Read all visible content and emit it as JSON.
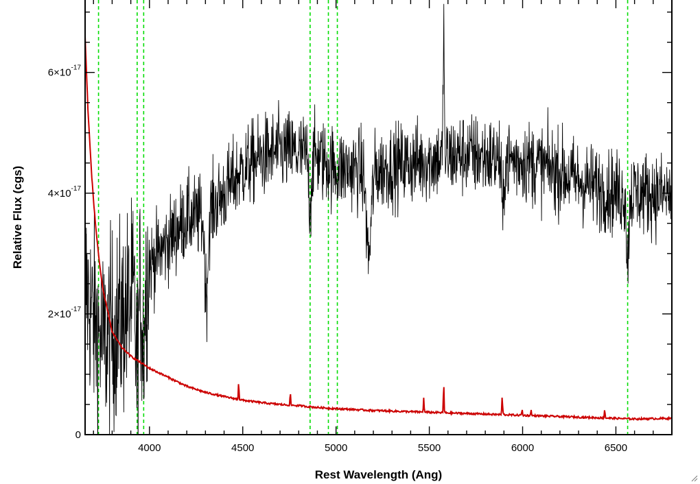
{
  "chart_data": {
    "type": "line",
    "xlabel": "Rest Wavelength (Ang)",
    "ylabel": "Relative Flux (cgs)",
    "xlim": [
      3655,
      6800
    ],
    "ylim": [
      0,
      7.2e-17
    ],
    "x_ticks": [
      {
        "value": 4000,
        "label": "4000"
      },
      {
        "value": 4500,
        "label": "4500"
      },
      {
        "value": 5000,
        "label": "5000"
      },
      {
        "value": 5500,
        "label": "5500"
      },
      {
        "value": 6000,
        "label": "6000"
      },
      {
        "value": 6500,
        "label": "6500"
      }
    ],
    "x_minor_step": 100,
    "y_ticks": [
      {
        "value": 0,
        "mantissa": "0",
        "exponent": ""
      },
      {
        "value": 2e-17,
        "mantissa": "2×10",
        "exponent": "-17"
      },
      {
        "value": 4e-17,
        "mantissa": "4×10",
        "exponent": "-17"
      },
      {
        "value": 6e-17,
        "mantissa": "6×10",
        "exponent": "-17"
      }
    ],
    "y_minor_step": 5e-18,
    "grid": false,
    "series": [
      {
        "color": "#000000",
        "style": "noisy-spectrum",
        "noise_sigma": 3.5e-18,
        "continuum": [
          [
            3655,
            2.5e-17
          ],
          [
            3700,
            1.9e-17
          ],
          [
            3750,
            1.5e-17
          ],
          [
            3800,
            1.7e-17
          ],
          [
            3850,
            1.9e-17
          ],
          [
            3900,
            2.2e-17
          ],
          [
            3950,
            2.4e-17
          ],
          [
            4000,
            2.8e-17
          ],
          [
            4100,
            3.2e-17
          ],
          [
            4200,
            3.6e-17
          ],
          [
            4300,
            3.6e-17
          ],
          [
            4400,
            4e-17
          ],
          [
            4500,
            4.4e-17
          ],
          [
            4600,
            4.6e-17
          ],
          [
            4700,
            4.7e-17
          ],
          [
            4800,
            4.65e-17
          ],
          [
            4900,
            4.6e-17
          ],
          [
            5000,
            4.4e-17
          ],
          [
            5100,
            4.4e-17
          ],
          [
            5200,
            4.35e-17
          ],
          [
            5300,
            4.45e-17
          ],
          [
            5400,
            4.5e-17
          ],
          [
            5500,
            4.55e-17
          ],
          [
            5600,
            4.6e-17
          ],
          [
            5700,
            4.65e-17
          ],
          [
            5800,
            4.6e-17
          ],
          [
            5900,
            4.55e-17
          ],
          [
            6000,
            4.55e-17
          ],
          [
            6100,
            4.45e-17
          ],
          [
            6200,
            4.35e-17
          ],
          [
            6300,
            4.2e-17
          ],
          [
            6400,
            4.1e-17
          ],
          [
            6500,
            4e-17
          ],
          [
            6600,
            4e-17
          ],
          [
            6700,
            4e-17
          ],
          [
            6800,
            3.95e-17
          ]
        ],
        "features": [
          {
            "center": 3933,
            "width": 10,
            "depth": -1.2e-17
          },
          {
            "center": 3968,
            "width": 10,
            "depth": -1e-17
          },
          {
            "center": 4305,
            "width": 12,
            "depth": -1.3e-17
          },
          {
            "center": 4861,
            "width": 10,
            "depth": -8e-18
          },
          {
            "center": 5175,
            "width": 18,
            "depth": -1.4e-17
          },
          {
            "center": 5577,
            "width": 4,
            "depth": 2.3e-17
          },
          {
            "center": 5893,
            "width": 8,
            "depth": -1e-17
          },
          {
            "center": 6563,
            "width": 8,
            "depth": -1.2e-17
          }
        ]
      },
      {
        "color": "#cc0000",
        "style": "smooth",
        "points": [
          [
            3655,
            6.6e-17
          ],
          [
            3670,
            5.4e-17
          ],
          [
            3690,
            4.3e-17
          ],
          [
            3710,
            3.5e-17
          ],
          [
            3730,
            2.9e-17
          ],
          [
            3750,
            2.4e-17
          ],
          [
            3780,
            2e-17
          ],
          [
            3800,
            1.7e-17
          ],
          [
            3850,
            1.45e-17
          ],
          [
            3900,
            1.3e-17
          ],
          [
            4000,
            1.1e-17
          ],
          [
            4100,
            9.5e-18
          ],
          [
            4200,
            8e-18
          ],
          [
            4300,
            7e-18
          ],
          [
            4400,
            6.3e-18
          ],
          [
            4500,
            5.7e-18
          ],
          [
            4600,
            5.3e-18
          ],
          [
            4700,
            5e-18
          ],
          [
            4800,
            4.8e-18
          ],
          [
            4900,
            4.5e-18
          ],
          [
            5000,
            4.3e-18
          ],
          [
            5200,
            4e-18
          ],
          [
            5400,
            3.8e-18
          ],
          [
            5600,
            3.6e-18
          ],
          [
            5800,
            3.4e-18
          ],
          [
            6000,
            3.2e-18
          ],
          [
            6200,
            3e-18
          ],
          [
            6400,
            2.8e-18
          ],
          [
            6600,
            2.6e-18
          ],
          [
            6800,
            2.7e-18
          ]
        ],
        "spikes": [
          {
            "x": 4478,
            "height": 3e-18
          },
          {
            "x": 4755,
            "height": 2e-18
          },
          {
            "x": 5470,
            "height": 2.5e-18
          },
          {
            "x": 5577,
            "height": 5e-18
          },
          {
            "x": 5890,
            "height": 2.5e-18
          },
          {
            "x": 5893,
            "height": 1e-18
          },
          {
            "x": 5997,
            "height": 1e-18
          },
          {
            "x": 6045,
            "height": 1e-18
          },
          {
            "x": 6440,
            "height": 1.5e-18
          }
        ]
      }
    ],
    "vertical_lines": {
      "color": "#00dd00",
      "style": "dashed",
      "x": [
        3727,
        3934,
        3969,
        4861,
        4959,
        5007,
        6563
      ]
    }
  }
}
